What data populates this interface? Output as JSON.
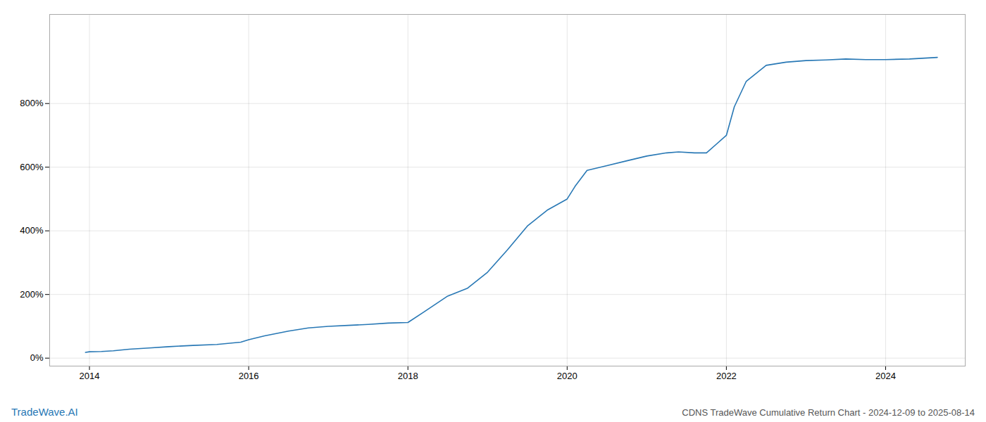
{
  "chart_data": {
    "type": "line",
    "title": "CDNS TradeWave Cumulative Return Chart - 2024-12-09 to 2025-08-14",
    "annotations": [
      {
        "text": "TradeWave.AI",
        "color": "#2878b5"
      }
    ],
    "x": [
      2013.95,
      2014.0,
      2014.15,
      2014.3,
      2014.5,
      2014.75,
      2015.0,
      2015.3,
      2015.6,
      2015.9,
      2016.0,
      2016.2,
      2016.5,
      2016.75,
      2017.0,
      2017.25,
      2017.5,
      2017.75,
      2018.0,
      2018.2,
      2018.5,
      2018.75,
      2019.0,
      2019.25,
      2019.5,
      2019.75,
      2020.0,
      2020.1,
      2020.25,
      2020.5,
      2020.75,
      2021.0,
      2021.25,
      2021.4,
      2021.6,
      2021.75,
      2022.0,
      2022.1,
      2022.25,
      2022.5,
      2022.75,
      2023.0,
      2023.25,
      2023.5,
      2023.75,
      2024.0,
      2024.3,
      2024.65
    ],
    "values": [
      18,
      20,
      21,
      23,
      28,
      32,
      36,
      40,
      43,
      50,
      58,
      70,
      85,
      95,
      100,
      103,
      106,
      110,
      112,
      145,
      195,
      220,
      270,
      340,
      415,
      465,
      500,
      540,
      590,
      605,
      620,
      635,
      645,
      648,
      645,
      645,
      700,
      790,
      870,
      920,
      930,
      935,
      937,
      940,
      938,
      938,
      940,
      945
    ],
    "color": "#2878b5",
    "xlim": [
      2013.5,
      2025.0
    ],
    "xticks": [
      2014,
      2016,
      2018,
      2020,
      2022,
      2024
    ],
    "ylim": [
      -25,
      1080
    ],
    "yticks": [
      {
        "value": 0,
        "label": "0%"
      },
      {
        "value": 200,
        "label": "200%"
      },
      {
        "value": 400,
        "label": "400%"
      },
      {
        "value": 600,
        "label": "600%"
      },
      {
        "value": 800,
        "label": "800%"
      }
    ],
    "grid": true
  }
}
